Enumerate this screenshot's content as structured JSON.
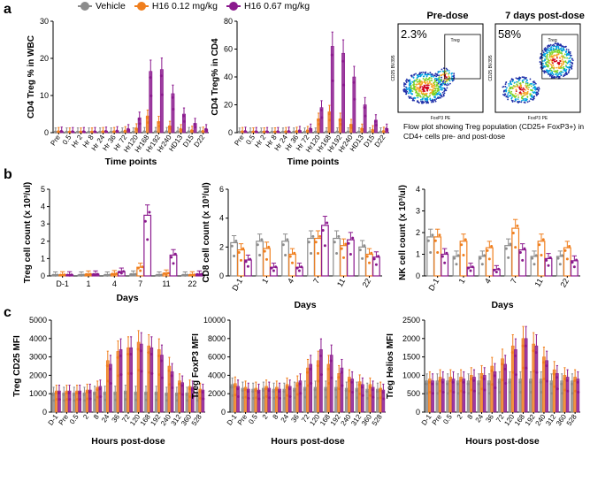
{
  "legend": [
    {
      "label": "Vehicle",
      "color": "#8c8c8c"
    },
    {
      "label": "H16 0.12 mg/kg",
      "color": "#f07f1e"
    },
    {
      "label": "H16 0.67 mg/kg",
      "color": "#8b1a8e"
    }
  ],
  "panel_labels": {
    "a": "a",
    "b": "b",
    "c": "c"
  },
  "flow": {
    "predose_title": "Pre-dose",
    "postdose_title": "7 days post-dose",
    "predose_pct": "2.3%",
    "postdose_pct": "58%",
    "gate_label": "Treg",
    "x_axis": "FoxP3 PE",
    "y_axis": "CD25 BV395",
    "caption": "Flow plot showing Treg population (CD25+ FoxP3+) in CD4+ cells pre- and post-dose"
  },
  "chart_data": [
    {
      "id": "a1",
      "type": "bar",
      "title": "",
      "xlabel": "Time points",
      "ylabel": "CD4 Treg % in WBC",
      "ylim": [
        0,
        30
      ],
      "yticks": [
        "0",
        "10",
        "20",
        "30"
      ],
      "categories": [
        "Pre",
        "0.5",
        "Hr 2",
        "Hr 8",
        "Hr 24",
        "Hr 36",
        "Hr 72",
        "Hr120",
        "Hr168",
        "Hr192",
        "Hr240",
        "HD13",
        "D15",
        "D22"
      ],
      "series": [
        {
          "name": "Vehicle",
          "values": [
            0.2,
            0.2,
            0.2,
            0.2,
            0.2,
            0.2,
            0.2,
            0.2,
            0.3,
            0.3,
            0.3,
            0.3,
            0.3,
            0.3
          ]
        },
        {
          "name": "H16 0.12 mg/kg",
          "values": [
            0.3,
            0.2,
            0.2,
            0.2,
            0.3,
            0.3,
            0.5,
            1.2,
            4.5,
            3.0,
            1.8,
            1.0,
            0.6,
            0.4
          ]
        },
        {
          "name": "H16 0.67 mg/kg",
          "values": [
            0.4,
            0.3,
            0.3,
            0.3,
            0.4,
            0.5,
            1.0,
            4.0,
            16.5,
            17.0,
            10.5,
            5.0,
            2.5,
            1.0
          ]
        }
      ]
    },
    {
      "id": "a2",
      "type": "bar",
      "title": "",
      "xlabel": "Time points",
      "ylabel": "CD4 Treg% in CD4",
      "ylim": [
        0,
        80
      ],
      "yticks": [
        "0",
        "20",
        "40",
        "60",
        "80"
      ],
      "categories": [
        "Pre",
        "0.5",
        "Hr 2",
        "Hr 8",
        "Hr 24",
        "Hr 36",
        "Hr 72",
        "Hr120",
        "Hr168",
        "Hr192",
        "Hr240",
        "HD13",
        "D15",
        "D22"
      ],
      "series": [
        {
          "name": "Vehicle",
          "values": [
            0.5,
            0.5,
            0.5,
            0.5,
            0.5,
            0.5,
            0.5,
            0.5,
            0.6,
            0.6,
            0.6,
            0.6,
            0.6,
            0.6
          ]
        },
        {
          "name": "H16 0.12 mg/kg",
          "values": [
            0.8,
            0.6,
            0.6,
            0.6,
            0.8,
            1.0,
            1.5,
            10.0,
            15.0,
            10.0,
            6.0,
            3.0,
            2.0,
            1.0
          ]
        },
        {
          "name": "H16 0.67 mg/kg",
          "values": [
            1.0,
            0.8,
            0.8,
            0.8,
            1.0,
            1.5,
            3.0,
            18.0,
            62.0,
            57.0,
            40.0,
            20.0,
            9.0,
            3.0
          ]
        }
      ]
    },
    {
      "id": "b1",
      "type": "bar",
      "title": "",
      "xlabel": "Days",
      "ylabel": "Treg cell count (x 10³/ul)",
      "ylim": [
        0,
        5
      ],
      "yticks": [
        "0",
        "1",
        "2",
        "3",
        "4",
        "5"
      ],
      "categories": [
        "D-1",
        "1",
        "4",
        "7",
        "11",
        "22"
      ],
      "series": [
        {
          "name": "Vehicle",
          "values": [
            0.05,
            0.05,
            0.05,
            0.1,
            0.05,
            0.05
          ]
        },
        {
          "name": "H16 0.12 mg/kg",
          "values": [
            0.06,
            0.1,
            0.12,
            0.5,
            0.15,
            0.06
          ]
        },
        {
          "name": "H16 0.67 mg/kg",
          "values": [
            0.06,
            0.1,
            0.25,
            3.5,
            1.2,
            0.1
          ]
        }
      ]
    },
    {
      "id": "b2",
      "type": "bar",
      "title": "",
      "xlabel": "Days",
      "ylabel": "CD8 cell count (x 10³/ul)",
      "ylim": [
        0,
        6
      ],
      "yticks": [
        "0",
        "2",
        "4",
        "6"
      ],
      "categories": [
        "D-1",
        "1",
        "4",
        "7",
        "11",
        "22"
      ],
      "series": [
        {
          "name": "Vehicle",
          "values": [
            2.3,
            2.4,
            2.4,
            2.6,
            2.6,
            2.0
          ]
        },
        {
          "name": "H16 0.12 mg/kg",
          "values": [
            1.8,
            1.9,
            1.5,
            2.6,
            2.1,
            1.5
          ]
        },
        {
          "name": "H16 0.67 mg/kg",
          "values": [
            1.1,
            0.6,
            0.6,
            3.5,
            2.5,
            1.3
          ]
        }
      ]
    },
    {
      "id": "b3",
      "type": "bar",
      "title": "",
      "xlabel": "Days",
      "ylabel": "NK cell count (x 10³/ul)",
      "ylim": [
        0,
        4
      ],
      "yticks": [
        "0",
        "1",
        "2",
        "3",
        "4"
      ],
      "categories": [
        "D-1",
        "1",
        "4",
        "7",
        "11",
        "22"
      ],
      "series": [
        {
          "name": "Vehicle",
          "values": [
            1.8,
            0.9,
            0.9,
            1.4,
            0.9,
            0.9
          ]
        },
        {
          "name": "H16 0.12 mg/kg",
          "values": [
            1.8,
            1.6,
            1.3,
            2.2,
            1.6,
            1.3
          ]
        },
        {
          "name": "H16 0.67 mg/kg",
          "values": [
            1.0,
            0.4,
            0.3,
            1.2,
            0.8,
            0.7
          ]
        }
      ]
    },
    {
      "id": "c1",
      "type": "bar",
      "title": "",
      "xlabel": "Hours post-dose",
      "ylabel": "Treg CD25 MFI",
      "ylim": [
        0,
        5000
      ],
      "yticks": [
        "0",
        "1000",
        "2000",
        "3000",
        "4000",
        "5000"
      ],
      "categories": [
        "D-1",
        "Pre",
        "0.5",
        "2",
        "8",
        "24",
        "36",
        "72",
        "120",
        "168",
        "192",
        "240",
        "312",
        "360",
        "528"
      ],
      "series": [
        {
          "name": "Vehicle",
          "values": [
            1050,
            1050,
            1050,
            1050,
            1100,
            1100,
            1100,
            1150,
            1100,
            1100,
            1100,
            1050,
            1050,
            1050,
            1050
          ]
        },
        {
          "name": "H16 0.12 mg/kg",
          "values": [
            1150,
            1150,
            1150,
            1200,
            1350,
            2800,
            3300,
            3500,
            3800,
            3600,
            3400,
            2500,
            1700,
            1400,
            1250
          ]
        },
        {
          "name": "H16 0.67 mg/kg",
          "values": [
            1150,
            1150,
            1150,
            1200,
            1400,
            2600,
            3400,
            3500,
            3700,
            3500,
            3100,
            2200,
            1600,
            1350,
            1200
          ]
        }
      ]
    },
    {
      "id": "c2",
      "type": "bar",
      "title": "",
      "xlabel": "Hours post-dose",
      "ylabel": "Treg FoxP3 MFI",
      "ylim": [
        0,
        10000
      ],
      "yticks": [
        "0",
        "2000",
        "4000",
        "6000",
        "8000",
        "10000"
      ],
      "categories": [
        "D-1",
        "Pre",
        "0.5",
        "2",
        "8",
        "24",
        "36",
        "72",
        "120",
        "168",
        "192",
        "240",
        "312",
        "360",
        "528"
      ],
      "series": [
        {
          "name": "Vehicle",
          "values": [
            3000,
            2600,
            2500,
            2600,
            2500,
            2500,
            2600,
            2700,
            2700,
            2700,
            2700,
            2600,
            2600,
            2500,
            2500
          ]
        },
        {
          "name": "H16 0.12 mg/kg",
          "values": [
            3100,
            2700,
            2600,
            2800,
            2700,
            3000,
            3200,
            4800,
            5600,
            5200,
            4200,
            3800,
            3300,
            3000,
            2600
          ]
        },
        {
          "name": "H16 0.67 mg/kg",
          "values": [
            2800,
            2500,
            2400,
            2600,
            2500,
            2800,
            3400,
            5200,
            6800,
            6200,
            4800,
            3600,
            3000,
            2700,
            2400
          ]
        }
      ]
    },
    {
      "id": "c3",
      "type": "bar",
      "title": "",
      "xlabel": "Hours post-dose",
      "ylabel": "Treg  Helios MFI",
      "ylim": [
        0,
        2500
      ],
      "yticks": [
        "0",
        "500",
        "1000",
        "1500",
        "2000",
        "2500"
      ],
      "categories": [
        "D-1",
        "Pre",
        "0.5",
        "2",
        "8",
        "24",
        "36",
        "72",
        "120",
        "168",
        "192",
        "240",
        "312",
        "360",
        "528"
      ],
      "series": [
        {
          "name": "Vehicle",
          "values": [
            850,
            850,
            850,
            850,
            850,
            850,
            850,
            900,
            900,
            900,
            900,
            900,
            850,
            850,
            850
          ]
        },
        {
          "name": "H16 0.12 mg/kg",
          "values": [
            900,
            950,
            950,
            950,
            1000,
            1050,
            1250,
            1450,
            1800,
            2000,
            1850,
            1500,
            1150,
            1000,
            950
          ]
        },
        {
          "name": "H16 0.67 mg/kg",
          "values": [
            850,
            900,
            900,
            900,
            950,
            1000,
            1100,
            1300,
            1700,
            2000,
            1800,
            1400,
            1050,
            950,
            900
          ]
        }
      ]
    }
  ]
}
